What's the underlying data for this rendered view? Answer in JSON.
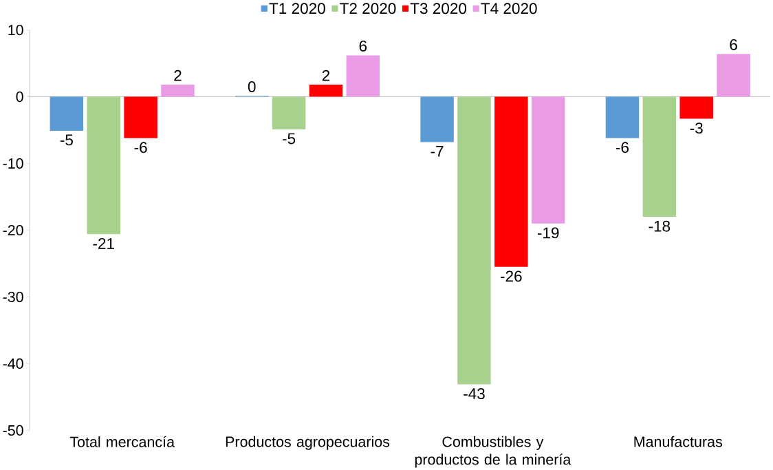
{
  "chart_data": {
    "type": "bar",
    "categories": [
      "Total mercancía",
      "Productos agropecuarios",
      "Combustibles y productos de la minería",
      "Manufacturas"
    ],
    "series": [
      {
        "name": "T1 2020",
        "color": "#5b9bd5",
        "values": [
          -5.1,
          0.1,
          -6.8,
          -6.2
        ],
        "value_labels": [
          "-5",
          "0",
          "-7",
          "-6"
        ]
      },
      {
        "name": "T2 2020",
        "color": "#a9d18e",
        "values": [
          -20.6,
          -4.9,
          -43.1,
          -18.0
        ],
        "value_labels": [
          "-21",
          "-5",
          "-43",
          "-18"
        ]
      },
      {
        "name": "T3 2020",
        "color": "#ff0000",
        "values": [
          -6.2,
          1.8,
          -25.5,
          -3.3
        ],
        "value_labels": [
          "-6",
          "2",
          "-26",
          "-3"
        ]
      },
      {
        "name": "T4 2020",
        "color": "#ea9be6",
        "values": [
          1.8,
          6.2,
          -19.0,
          6.4
        ],
        "value_labels": [
          "2",
          "6",
          "-19",
          "6"
        ]
      }
    ],
    "ylim": [
      -50,
      10
    ],
    "yticks": [
      -50,
      -40,
      -30,
      -20,
      -10,
      0,
      10
    ],
    "legend": "top"
  }
}
